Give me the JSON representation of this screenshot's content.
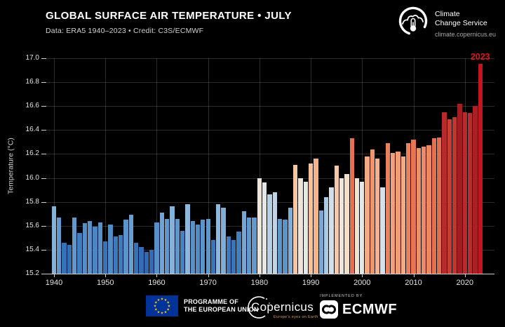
{
  "header": {
    "title": "GLOBAL SURFACE AIR TEMPERATURE • JULY",
    "subtitle": "Data: ERA5 1940–2023 • Credit: C3S/ECMWF"
  },
  "logo": {
    "service_line1": "Climate",
    "service_line2": "Change Service",
    "website": "climate.copernicus.eu"
  },
  "annotation": {
    "label": "2023",
    "color": "#e0151b"
  },
  "chart_data": {
    "type": "bar",
    "title": "GLOBAL SURFACE AIR TEMPERATURE • JULY",
    "xlabel": "",
    "ylabel": "Temperature (°C)",
    "ylim": [
      15.2,
      17.0
    ],
    "yticks": [
      15.2,
      15.4,
      15.6,
      15.8,
      16.0,
      16.2,
      16.4,
      16.6,
      16.8,
      17.0
    ],
    "ytick_labels": [
      "15.2",
      "15.4",
      "15.6",
      "15.8",
      "16.0",
      "16.2",
      "16.4",
      "16.6",
      "16.8",
      "17.0"
    ],
    "xticks": [
      1940,
      1950,
      1960,
      1970,
      1980,
      1990,
      2000,
      2010,
      2020
    ],
    "grid": true,
    "legend": "none",
    "background": "#000000",
    "years": [
      1940,
      1941,
      1942,
      1943,
      1944,
      1945,
      1946,
      1947,
      1948,
      1949,
      1950,
      1951,
      1952,
      1953,
      1954,
      1955,
      1956,
      1957,
      1958,
      1959,
      1960,
      1961,
      1962,
      1963,
      1964,
      1965,
      1966,
      1967,
      1968,
      1969,
      1970,
      1971,
      1972,
      1973,
      1974,
      1975,
      1976,
      1977,
      1978,
      1979,
      1980,
      1981,
      1982,
      1983,
      1984,
      1985,
      1986,
      1987,
      1988,
      1989,
      1990,
      1991,
      1992,
      1993,
      1994,
      1995,
      1996,
      1997,
      1998,
      1999,
      2000,
      2001,
      2002,
      2003,
      2004,
      2005,
      2006,
      2007,
      2008,
      2009,
      2010,
      2011,
      2012,
      2013,
      2014,
      2015,
      2016,
      2017,
      2018,
      2019,
      2020,
      2021,
      2022,
      2023
    ],
    "values": [
      15.76,
      15.67,
      15.46,
      15.44,
      15.67,
      15.54,
      15.62,
      15.64,
      15.59,
      15.63,
      15.47,
      15.61,
      15.51,
      15.52,
      15.65,
      15.69,
      15.46,
      15.42,
      15.38,
      15.4,
      15.63,
      15.71,
      15.66,
      15.76,
      15.66,
      15.56,
      15.78,
      15.64,
      15.61,
      15.65,
      15.66,
      15.48,
      15.78,
      15.75,
      15.51,
      15.48,
      15.55,
      15.72,
      15.67,
      15.67,
      16.0,
      15.96,
      15.86,
      15.88,
      15.66,
      15.65,
      15.75,
      16.11,
      16.0,
      15.97,
      16.12,
      16.16,
      15.73,
      15.84,
      15.92,
      16.1,
      16.0,
      16.03,
      16.33,
      16.0,
      15.97,
      16.18,
      16.24,
      16.16,
      15.92,
      16.29,
      16.21,
      16.22,
      16.18,
      16.29,
      16.32,
      16.25,
      16.26,
      16.27,
      16.33,
      16.34,
      16.55,
      16.49,
      16.51,
      16.62,
      16.55,
      16.54,
      16.6,
      16.95
    ],
    "highlight": {
      "year": 2023,
      "value": 16.95,
      "label_color": "#e0151b"
    },
    "color_scale": {
      "stops": [
        [
          15.35,
          "#2d65ac"
        ],
        [
          15.45,
          "#3472b7"
        ],
        [
          15.55,
          "#4180bf"
        ],
        [
          15.65,
          "#5b94c9"
        ],
        [
          15.75,
          "#7fafd8"
        ],
        [
          15.85,
          "#aecde3"
        ],
        [
          15.92,
          "#d3e0ec"
        ],
        [
          15.98,
          "#e9e9e4"
        ],
        [
          16.04,
          "#f7dcc0"
        ],
        [
          16.14,
          "#f6bb93"
        ],
        [
          16.24,
          "#f0946a"
        ],
        [
          16.34,
          "#e36e4b"
        ],
        [
          16.44,
          "#d64b36"
        ],
        [
          16.54,
          "#bc2c2e"
        ],
        [
          16.62,
          "#a51c24"
        ],
        [
          16.8,
          "#9f151d"
        ],
        [
          16.95,
          "#c2151f"
        ]
      ]
    }
  },
  "footer": {
    "eu_label_line1": "PROGRAMME OF",
    "eu_label_line2": "THE EUROPEAN UNION",
    "copernicus_wordmark": "Copernicus",
    "copernicus_tagline": "Europe's eyes on Earth",
    "implemented_by": "IMPLEMENTED BY",
    "ecmwf_wordmark": "ECMWF"
  }
}
